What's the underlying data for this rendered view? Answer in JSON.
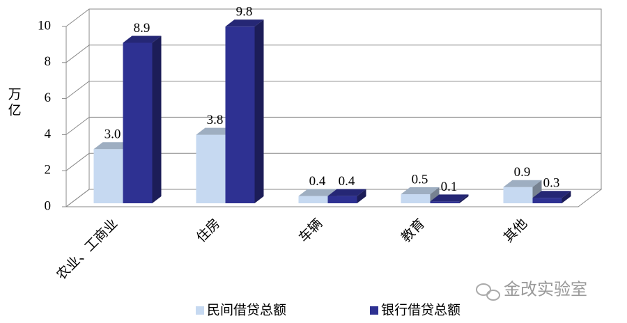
{
  "chart_data": {
    "type": "bar3d",
    "y_label": "万亿",
    "categories": [
      "农业、工商业",
      "住房",
      "车辆",
      "教育",
      "其他"
    ],
    "series": [
      {
        "name": "民间借贷总额",
        "color": "#c6d9f1",
        "values": [
          3,
          3.8,
          0.4,
          0.5,
          0.9
        ],
        "value_labels": [
          "3.0",
          "3.8",
          "0.4",
          "0.5",
          "0.9"
        ]
      },
      {
        "name": "银行借贷总额",
        "color": "#2e3192",
        "values": [
          8.9,
          9.8,
          0.4,
          0.1,
          0.3
        ],
        "value_labels": [
          "8.9",
          "9.8",
          "0.4",
          "0.1",
          "0.3"
        ]
      }
    ],
    "ylim": [
      0,
      10
    ],
    "yticks": [
      0,
      2,
      4,
      6,
      8,
      10
    ],
    "grid": true,
    "watermark": "金改实验室"
  }
}
